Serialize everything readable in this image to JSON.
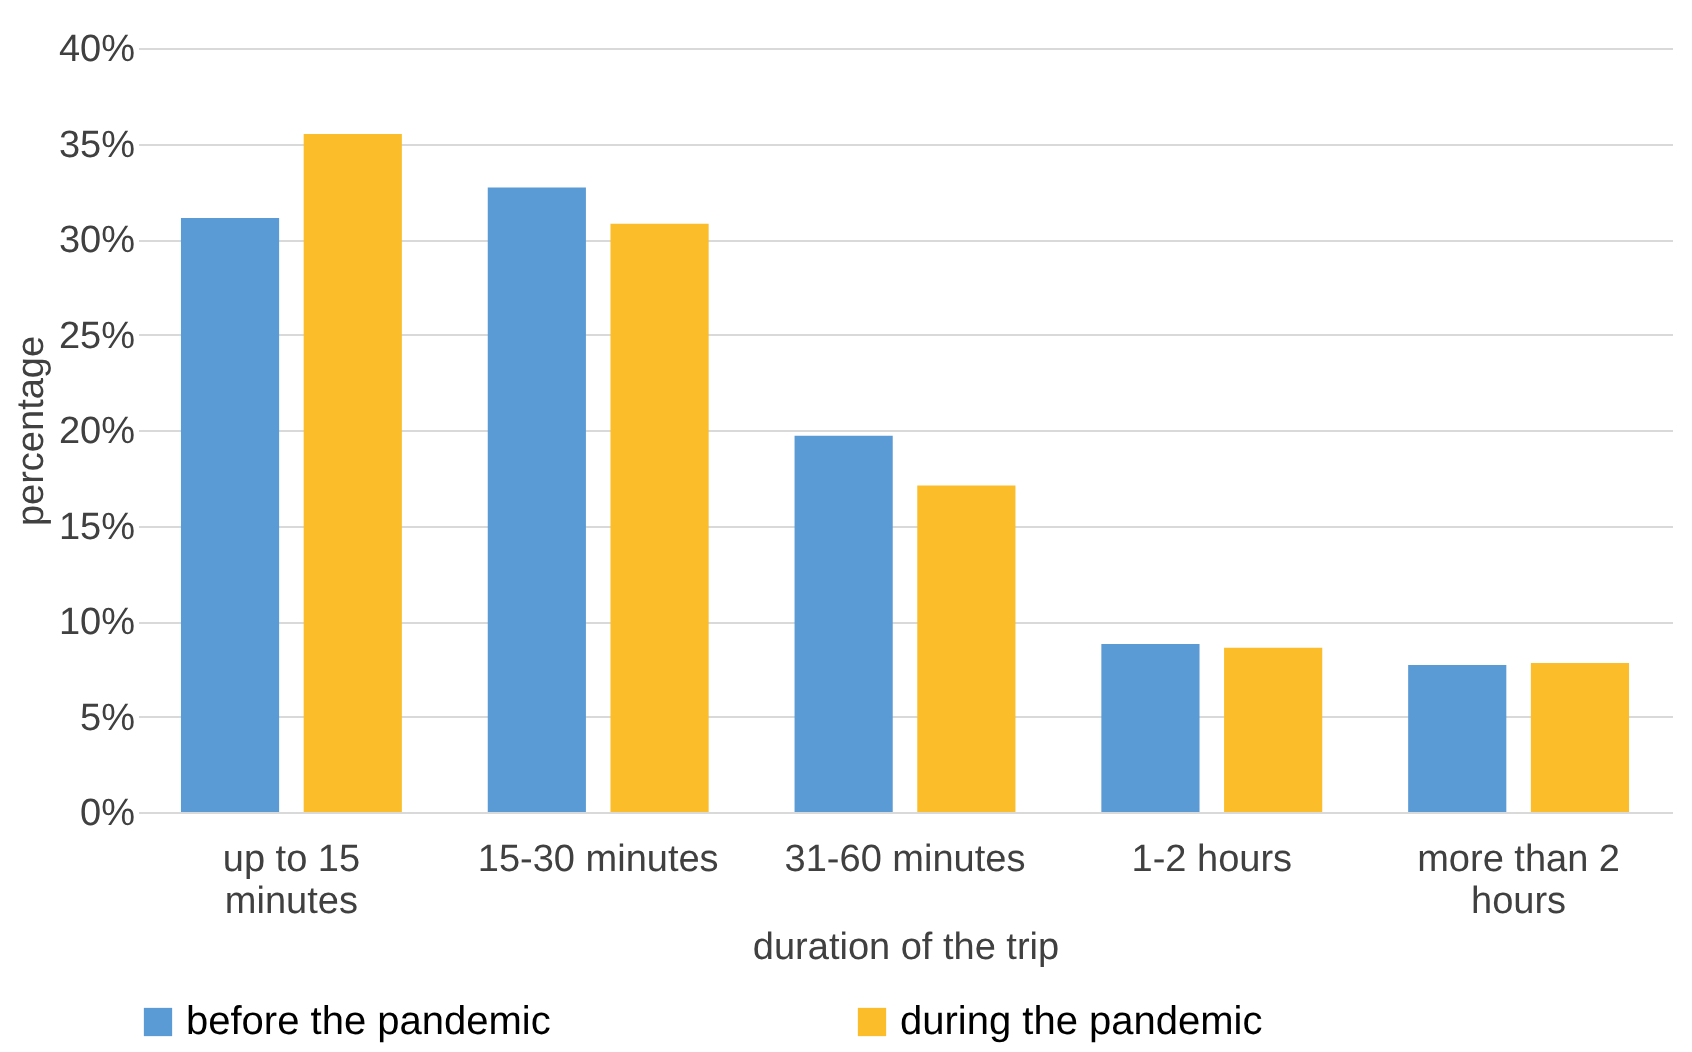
{
  "chart_data": {
    "type": "bar",
    "xlabel": "duration of the trip",
    "ylabel": "percentage",
    "categories": [
      "up to 15 minutes",
      "15-30 minutes",
      "31-60 minutes",
      "1-2 hours",
      "more than 2 hours"
    ],
    "series": [
      {
        "name": "before the pandemic",
        "color": "#5b9bd5",
        "values": [
          31.1,
          32.7,
          19.7,
          8.8,
          7.7
        ]
      },
      {
        "name": "during the pandemic",
        "color": "#fbbd2a",
        "values": [
          35.5,
          30.8,
          17.1,
          8.6,
          7.8
        ]
      }
    ],
    "ylim": [
      0,
      40
    ],
    "yticks": [
      {
        "value": 0,
        "label": "0%"
      },
      {
        "value": 5,
        "label": "5%"
      },
      {
        "value": 10,
        "label": "10%"
      },
      {
        "value": 15,
        "label": "15%"
      },
      {
        "value": 20,
        "label": "20%"
      },
      {
        "value": 25,
        "label": "25%"
      },
      {
        "value": 30,
        "label": "30%"
      },
      {
        "value": 35,
        "label": "35%"
      },
      {
        "value": 40,
        "label": "40%"
      }
    ],
    "grid": "y",
    "legend": "bottom"
  }
}
